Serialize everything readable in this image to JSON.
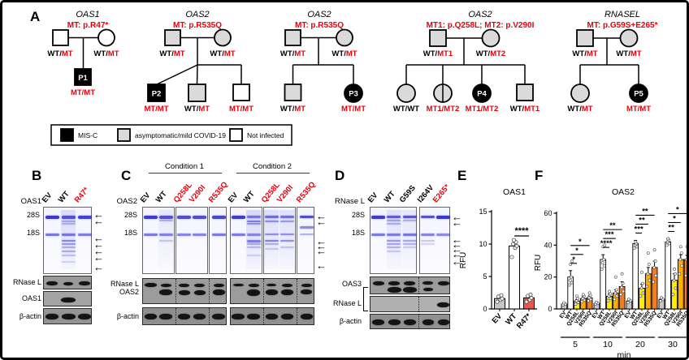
{
  "colors": {
    "accent_red": "#e8000b",
    "pedigree_gray": "#dadada",
    "gel_band_blue": "#2a2ac8",
    "bar_ev": "#c6c6c6",
    "bar_wt": "#ffffff",
    "bar_q258l": "#ffee00",
    "bar_v290i": "#ffae00",
    "bar_r535q": "#f47c20",
    "bar_r47": "#e8584e"
  },
  "pedigree": {
    "panel_label": "A",
    "families": [
      {
        "gene": "OAS1",
        "mutation": "MT: p.R47*",
        "father_gt": {
          "black": "WT/",
          "red": "MT"
        },
        "mother_gt": {
          "black": "WT/",
          "red": "MT"
        },
        "children": [
          {
            "id": "P1",
            "gt": {
              "black": "",
              "red": "MT/MT"
            }
          }
        ]
      },
      {
        "gene": "OAS2",
        "mutation": "MT: p.R535Q",
        "father_gt": {
          "black": "WT/",
          "red": "MT"
        },
        "mother_gt": {
          "black": "WT/",
          "red": "MT"
        },
        "children": [
          {
            "id": "P2",
            "gt": {
              "black": "",
              "red": "MT/MT"
            }
          },
          {
            "id": "",
            "gt": {
              "black": "WT/",
              "red": "MT"
            }
          },
          {
            "id": "",
            "gt": {
              "black": "",
              "red": "MT/MT"
            }
          }
        ]
      },
      {
        "gene": "OAS2",
        "mutation": "MT: p.R535Q",
        "father_gt": {
          "black": "WT/",
          "red": "MT"
        },
        "mother_gt": {
          "black": "WT/",
          "red": "MT"
        },
        "children": [
          {
            "id": "",
            "gt": {
              "black": "WT/",
              "red": "MT"
            }
          },
          {
            "id": "P3",
            "gt": {
              "black": "",
              "red": "MT/MT"
            }
          }
        ]
      },
      {
        "gene": "OAS2",
        "mutation": "MT1: p.Q258L; MT2: p.V290I",
        "father_gt": {
          "black": "WT/",
          "red": "MT1"
        },
        "mother_gt": {
          "black": "WT/",
          "red": "MT2"
        },
        "children": [
          {
            "id": "",
            "gt": {
              "black": "WT/WT",
              "red": ""
            }
          },
          {
            "id": "",
            "gt": {
              "black": "",
              "red": "MT1/MT2"
            }
          },
          {
            "id": "P4",
            "gt": {
              "black": "",
              "red": "MT1/MT2"
            }
          },
          {
            "id": "",
            "gt": {
              "black": "WT/",
              "red": "MT1"
            }
          }
        ]
      },
      {
        "gene": "RNASEL",
        "mutation": "MT: p.G59S+E265*",
        "father_gt": {
          "black": "WT/",
          "red": "MT"
        },
        "mother_gt": {
          "black": "WT/",
          "red": "MT"
        },
        "children": [
          {
            "id": "",
            "gt": {
              "black": "WT/",
              "red": "MT"
            }
          },
          {
            "id": "P5",
            "gt": {
              "black": "",
              "red": "MT/MT"
            }
          }
        ]
      }
    ],
    "legend": [
      {
        "label": "MIS-C"
      },
      {
        "label": "asymptomatic/mild COVID-19"
      },
      {
        "label": "Not infected"
      }
    ]
  },
  "panels": {
    "b": {
      "label": "B",
      "row_label": "OAS1",
      "lanes": [
        "EV",
        "WT",
        "R47*"
      ],
      "markers": [
        "28S",
        "18S"
      ],
      "blots": [
        "RNase L",
        "OAS1",
        "β-actin"
      ]
    },
    "c": {
      "label": "C",
      "row_label": "OAS2",
      "conditions": [
        "Condition 1",
        "Condition 2"
      ],
      "lanes": [
        "EV",
        "WT",
        "Q258L",
        "V290I",
        "R535Q"
      ],
      "markers": [
        "28S",
        "18S"
      ],
      "blots": [
        "RNase L",
        "OAS2",
        "β-actin"
      ]
    },
    "d": {
      "label": "D",
      "row_label": "RNase L",
      "lanes": [
        "EV",
        "WT",
        "G59S",
        "I264V",
        "E265*"
      ],
      "markers": [
        "28S",
        "18S"
      ],
      "blots": [
        "OAS3",
        "RNase L",
        "β-actin"
      ]
    }
  },
  "chart_data": [
    {
      "id": "panel_e",
      "panel_label": "E",
      "type": "bar",
      "title": "OAS1",
      "ylabel": "RFU",
      "ylim": [
        0,
        15
      ],
      "yticks": [
        0,
        5,
        10,
        15
      ],
      "grid": false,
      "categories": [
        "EV",
        "WT",
        "R47*"
      ],
      "values": [
        1.6,
        9.7,
        1.7
      ],
      "errors": [
        0.3,
        0.5,
        0.35
      ],
      "points": [
        [
          1.1,
          1.4,
          1.6,
          1.9,
          2.1
        ],
        [
          8.0,
          9.4,
          9.7,
          10.0,
          10.3,
          10.6
        ],
        [
          1.1,
          1.4,
          1.7,
          2.0,
          2.2
        ]
      ],
      "bar_colors": [
        "#c6c6c6",
        "#ffffff",
        "#e8584e"
      ],
      "label_colors": [
        "#000000",
        "#000000",
        "#e8000b"
      ],
      "significance": [
        {
          "from": "WT",
          "to": "R47*",
          "label": "****"
        }
      ]
    },
    {
      "id": "panel_f",
      "panel_label": "F",
      "type": "grouped_bar",
      "title": "OAS2",
      "ylabel": "RFU",
      "xlabel": "min",
      "ylim": [
        0,
        60
      ],
      "yticks": [
        0,
        20,
        40,
        60
      ],
      "grid": false,
      "groups": [
        "5",
        "10",
        "20",
        "30"
      ],
      "series": [
        "EV",
        "WT",
        "Q258L",
        "V290I",
        "R535Q"
      ],
      "series_colors": [
        "#c6c6c6",
        "#ffffff",
        "#ffee00",
        "#ffae00",
        "#f47c20"
      ],
      "label_colors": [
        "#000000",
        "#000000",
        "#e8000b",
        "#e8000b",
        "#e8000b"
      ],
      "values": [
        [
          3,
          20,
          5,
          6.5,
          7
        ],
        [
          3.5,
          31,
          8,
          10,
          14
        ],
        [
          5,
          41,
          13,
          22,
          26
        ],
        [
          6,
          42,
          18,
          31,
          31
        ]
      ],
      "errors": [
        [
          0.5,
          4,
          1,
          1.2,
          1.2
        ],
        [
          0.5,
          3,
          1.5,
          2,
          3
        ],
        [
          0.8,
          2,
          2.5,
          4,
          4
        ],
        [
          0.8,
          2,
          4,
          3,
          2.5
        ]
      ],
      "points": [
        [
          [
            2.5,
            3,
            3.8
          ],
          [
            15,
            16.5,
            18,
            20,
            28,
            30
          ],
          [
            3,
            4,
            5,
            6.5,
            8
          ],
          [
            4.5,
            5.5,
            6.5,
            8,
            9
          ],
          [
            5,
            6,
            7,
            8.5,
            10
          ]
        ],
        [
          [
            3,
            3.5,
            4.2
          ],
          [
            25,
            27,
            29,
            31,
            39,
            40
          ],
          [
            5,
            6.5,
            8,
            9.5,
            11
          ],
          [
            6,
            8,
            10,
            12,
            20
          ],
          [
            9,
            11,
            13.5,
            16,
            22
          ]
        ],
        [
          [
            4,
            5,
            6
          ],
          [
            38,
            39,
            40,
            41,
            42
          ],
          [
            8,
            10,
            13,
            16,
            23
          ],
          [
            14,
            18,
            22,
            28,
            35
          ],
          [
            17,
            21,
            26,
            30,
            37
          ]
        ],
        [
          [
            5,
            6,
            7
          ],
          [
            40,
            41,
            42,
            43,
            44
          ],
          [
            9,
            13,
            18,
            22,
            25
          ],
          [
            22,
            27,
            31,
            35,
            39
          ],
          [
            21,
            27,
            31,
            34,
            39
          ]
        ]
      ],
      "significance_vs_wt": [
        [
          "*",
          "*",
          "*"
        ],
        [
          "****",
          "***",
          "**"
        ],
        [
          "***",
          "**",
          "**"
        ],
        [
          "**",
          "*",
          "*"
        ]
      ]
    }
  ]
}
